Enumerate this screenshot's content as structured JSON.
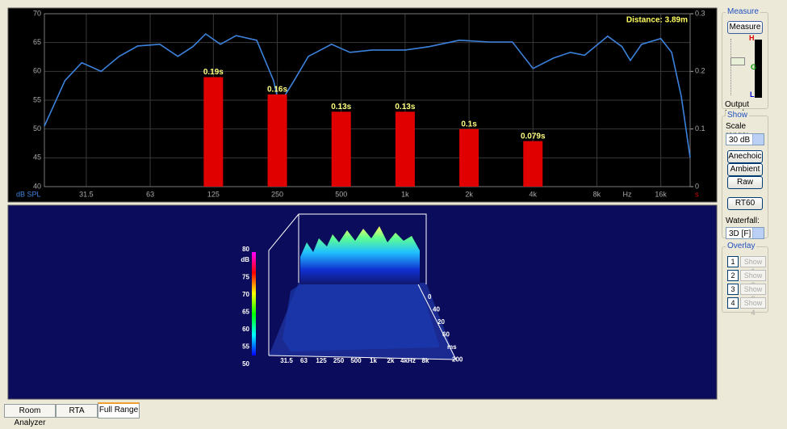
{
  "window": {
    "tabs": [
      "Room Analyzer",
      "RTA",
      "Full Range"
    ]
  },
  "chart_data": {
    "type": "combo",
    "annotation": "Distance: 3.89m",
    "y_label": "dB SPL",
    "y2_label": "s",
    "x_unit_label": "Hz",
    "xscale": "log",
    "xlim": [
      20,
      22000
    ],
    "xticks": [
      31.5,
      63,
      125,
      250,
      500,
      {
        "value": 1000,
        "label": "1k"
      },
      {
        "value": 2000,
        "label": "2k"
      },
      {
        "value": 4000,
        "label": "4k"
      },
      {
        "value": 8000,
        "label": "8k"
      },
      {
        "value": 16000,
        "label": "16k"
      }
    ],
    "ylim": [
      40,
      70
    ],
    "yticks": [
      40,
      45,
      50,
      55,
      60,
      65,
      70
    ],
    "y2lim": [
      0,
      0.3
    ],
    "y2ticks": [
      0,
      0.1,
      0.2,
      0.3
    ],
    "grid": true,
    "series": [
      {
        "type": "line",
        "color": "#3c82dc",
        "x": [
          20,
          25,
          30,
          37,
          45,
          55,
          70,
          85,
          100,
          115,
          135,
          160,
          200,
          240,
          255,
          300,
          350,
          450,
          550,
          700,
          1000,
          1300,
          1800,
          2500,
          3200,
          4000,
          5000,
          6000,
          7000,
          9000,
          10500,
          11500,
          13000,
          16000,
          18000,
          20000,
          22000
        ],
        "values": [
          50.5,
          58.4,
          61.5,
          60,
          62.6,
          64.4,
          64.7,
          62.6,
          64.3,
          66.5,
          64.7,
          66.2,
          65.4,
          58.4,
          54.2,
          58.4,
          62.6,
          64.7,
          63.3,
          63.7,
          63.7,
          64.3,
          65.4,
          65.1,
          65.1,
          60.5,
          62.3,
          63.3,
          62.8,
          66.1,
          64.3,
          61.9,
          64.7,
          65.7,
          63.3,
          55.6,
          45
        ]
      },
      {
        "type": "bar",
        "axis": "y2",
        "color": "#e00000",
        "x": [
          125,
          250,
          500,
          1000,
          2000,
          4000
        ],
        "values": [
          0.19,
          0.16,
          0.13,
          0.13,
          0.1,
          0.079
        ],
        "value_labels": [
          "0.19s",
          "0.16s",
          "0.13s",
          "0.13s",
          "0.1s",
          "0.079s"
        ]
      }
    ]
  },
  "waterfall": {
    "z_unit": "dB",
    "z_labels": [
      "80",
      "75",
      "70",
      "65",
      "60",
      "55",
      "50"
    ],
    "x_labels": [
      "31.5",
      "63",
      "125",
      "250",
      "500",
      "1k",
      "2k",
      "4kHz",
      "8k"
    ],
    "depth_labels": [
      "0",
      "40",
      "20",
      "60",
      "ms",
      "200"
    ]
  },
  "side_panel": {
    "measure": {
      "title": "Measure",
      "button": "Measure",
      "level_labels": [
        "H",
        "G",
        "L"
      ],
      "caption": "Output Level"
    },
    "show": {
      "title": "Show",
      "scale_label": "Scale range:",
      "scale_value": "30 dB",
      "buttons": [
        "Anechoic",
        "Ambient",
        "Raw"
      ],
      "rt60": "RT60",
      "waterfall_label": "Waterfall:",
      "waterfall_value": "3D [F]"
    },
    "overlay": {
      "title": "Overlay",
      "items": [
        {
          "number": "1",
          "label": "Show 1"
        },
        {
          "number": "2",
          "label": "Show 2"
        },
        {
          "number": "3",
          "label": "Show 3"
        },
        {
          "number": "4",
          "label": "Show 4"
        }
      ]
    }
  }
}
